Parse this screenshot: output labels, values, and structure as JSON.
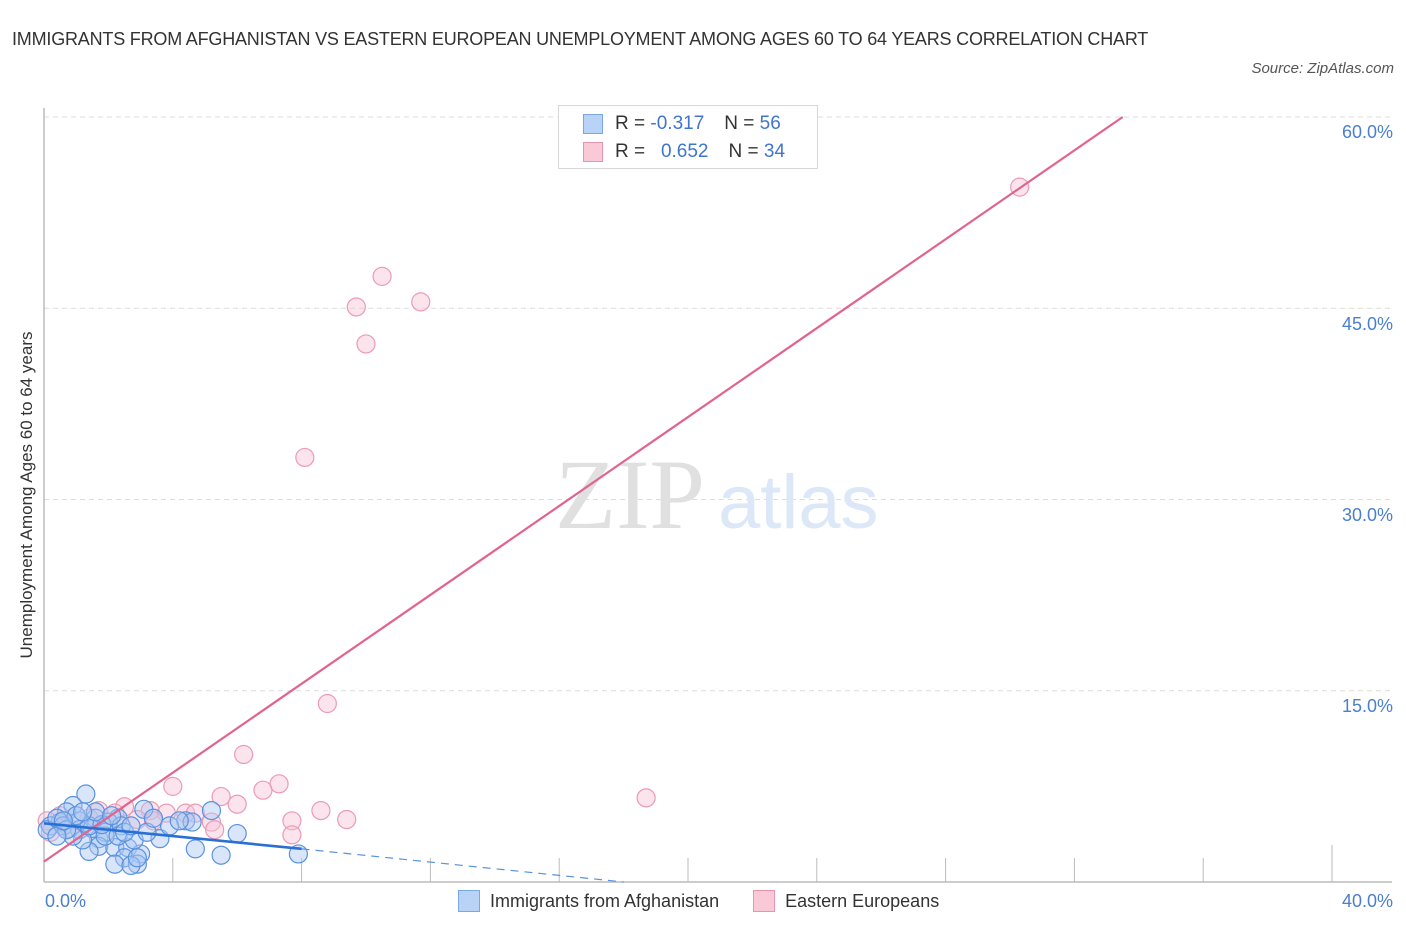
{
  "header": {
    "title": "IMMIGRANTS FROM AFGHANISTAN VS EASTERN EUROPEAN UNEMPLOYMENT AMONG AGES 60 TO 64 YEARS CORRELATION CHART",
    "source": "Source: ZipAtlas.com"
  },
  "legend": {
    "rows": [
      {
        "r_label": "R =",
        "r_value": "-0.317",
        "n_label": "N =",
        "n_value": "56",
        "color": "#b8d3f5"
      },
      {
        "r_label": "R =",
        "r_value": "0.652",
        "n_label": "N =",
        "n_value": "34",
        "color": "#f9c9d8"
      }
    ],
    "series": [
      {
        "label": "Immigrants from Afghanistan",
        "color": "#b8d3f5"
      },
      {
        "label": "Eastern Europeans",
        "color": "#f9c9d8"
      }
    ]
  },
  "axes": {
    "ylabel": "Unemployment Among Ages 60 to 64 years",
    "yticks": [
      "60.0%",
      "45.0%",
      "30.0%",
      "15.0%"
    ],
    "xticks": [
      "0.0%",
      "40.0%"
    ]
  },
  "watermark": {
    "zip": "ZIP",
    "atlas": "atlas"
  },
  "chart_data": {
    "type": "scatter",
    "title": "IMMIGRANTS FROM AFGHANISTAN VS EASTERN EUROPEAN UNEMPLOYMENT AMONG AGES 60 TO 64 YEARS CORRELATION CHART",
    "xlabel": "",
    "ylabel": "Unemployment Among Ages 60 to 64 years",
    "xlim": [
      0,
      40
    ],
    "ylim": [
      0,
      60
    ],
    "xticks": [
      0,
      40
    ],
    "yticks": [
      15,
      30,
      45,
      60
    ],
    "grid": "horizontal dashed",
    "legend_position": "top-center and bottom",
    "series": [
      {
        "name": "Immigrants from Afghanistan",
        "color": "#6a9fe0",
        "R": -0.317,
        "N": 56,
        "trendline": {
          "x": [
            0,
            8.0
          ],
          "y": [
            4.6,
            2.6
          ],
          "dashed_extension": {
            "x": [
              8.0,
              18.0
            ],
            "y": [
              2.6,
              0
            ]
          }
        },
        "points": [
          [
            1.3,
            6.9
          ],
          [
            0.9,
            6.0
          ],
          [
            0.7,
            5.5
          ],
          [
            3.1,
            5.7
          ],
          [
            5.2,
            5.6
          ],
          [
            2.3,
            5.0
          ],
          [
            4.4,
            4.8
          ],
          [
            4.6,
            4.7
          ],
          [
            3.6,
            3.4
          ],
          [
            6.0,
            3.8
          ],
          [
            4.7,
            2.6
          ],
          [
            5.5,
            2.1
          ],
          [
            7.9,
            2.2
          ],
          [
            0.5,
            4.7
          ],
          [
            0.2,
            4.4
          ],
          [
            0.1,
            4.1
          ],
          [
            0.4,
            5.0
          ],
          [
            0.6,
            4.4
          ],
          [
            1.1,
            4.8
          ],
          [
            1.1,
            4.1
          ],
          [
            1.6,
            5.0
          ],
          [
            1.7,
            3.4
          ],
          [
            1.5,
            4.2
          ],
          [
            2.0,
            4.7
          ],
          [
            1.9,
            3.9
          ],
          [
            2.4,
            4.4
          ],
          [
            1.7,
            2.8
          ],
          [
            1.4,
            2.4
          ],
          [
            2.2,
            2.7
          ],
          [
            2.6,
            2.7
          ],
          [
            2.5,
            1.9
          ],
          [
            3.0,
            2.2
          ],
          [
            2.9,
            1.4
          ],
          [
            2.2,
            1.4
          ],
          [
            2.7,
            1.3
          ],
          [
            2.9,
            1.9
          ],
          [
            1.9,
            3.6
          ],
          [
            1.2,
            3.3
          ],
          [
            0.9,
            3.6
          ],
          [
            0.7,
            4.1
          ],
          [
            0.4,
            3.6
          ],
          [
            1.4,
            4.4
          ],
          [
            1.8,
            4.5
          ],
          [
            2.3,
            3.6
          ],
          [
            2.8,
            3.3
          ],
          [
            3.2,
            3.9
          ],
          [
            3.4,
            5.0
          ],
          [
            3.9,
            4.4
          ],
          [
            4.2,
            4.8
          ],
          [
            1.6,
            5.5
          ],
          [
            1.0,
            5.2
          ],
          [
            0.6,
            4.8
          ],
          [
            1.2,
            5.5
          ],
          [
            2.1,
            5.2
          ],
          [
            2.5,
            3.9
          ],
          [
            2.7,
            4.4
          ]
        ]
      },
      {
        "name": "Eastern Europeans",
        "color": "#f0a0b8",
        "R": 0.652,
        "N": 34,
        "trendline": {
          "x": [
            0,
            33.5
          ],
          "y": [
            1.6,
            60.0
          ]
        },
        "points": [
          [
            30.3,
            54.5
          ],
          [
            10.5,
            47.5
          ],
          [
            11.7,
            45.5
          ],
          [
            9.7,
            45.1
          ],
          [
            10.0,
            42.2
          ],
          [
            8.1,
            33.3
          ],
          [
            8.8,
            14.0
          ],
          [
            6.2,
            10.0
          ],
          [
            18.7,
            6.6
          ],
          [
            4.0,
            7.5
          ],
          [
            7.3,
            7.7
          ],
          [
            5.5,
            6.7
          ],
          [
            6.8,
            7.2
          ],
          [
            6.0,
            6.1
          ],
          [
            8.6,
            5.6
          ],
          [
            7.7,
            4.8
          ],
          [
            9.4,
            4.9
          ],
          [
            7.7,
            3.7
          ],
          [
            4.4,
            5.4
          ],
          [
            4.7,
            5.4
          ],
          [
            5.2,
            4.7
          ],
          [
            5.3,
            4.1
          ],
          [
            2.5,
            5.9
          ],
          [
            3.3,
            5.6
          ],
          [
            3.8,
            5.4
          ],
          [
            2.9,
            4.9
          ],
          [
            2.2,
            5.4
          ],
          [
            1.7,
            5.6
          ],
          [
            0.5,
            5.2
          ],
          [
            0.1,
            4.8
          ],
          [
            0.2,
            3.9
          ],
          [
            0.8,
            4.2
          ],
          [
            1.4,
            5.0
          ],
          [
            3.4,
            4.8
          ]
        ]
      }
    ]
  }
}
